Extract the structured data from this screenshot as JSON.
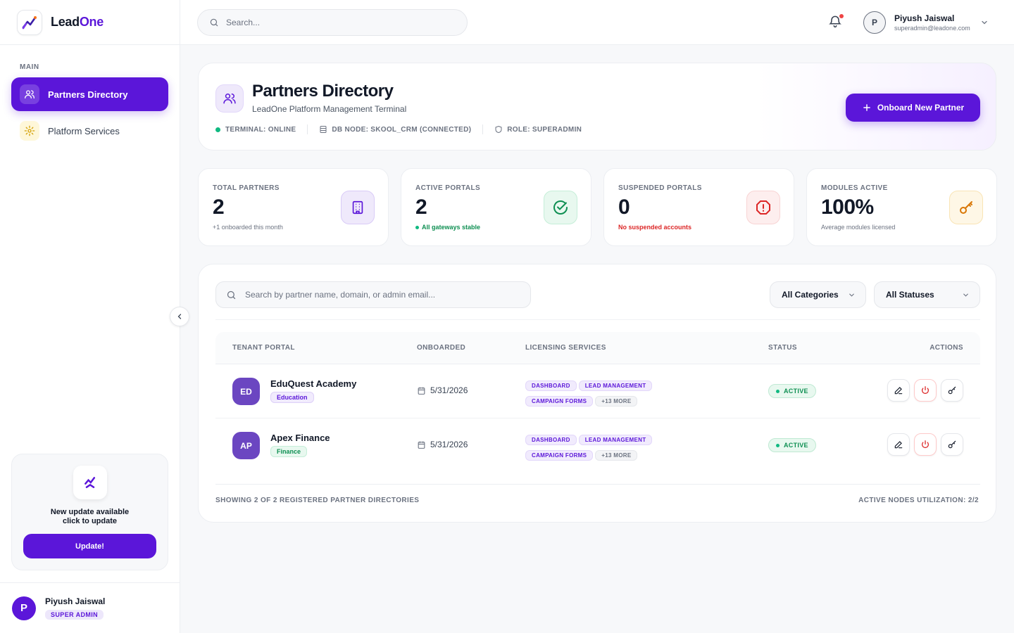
{
  "brand": {
    "name_part1": "Lead",
    "name_part2": "One"
  },
  "sidebar": {
    "section_label": "MAIN",
    "items": [
      {
        "label": "Partners Directory",
        "icon": "users-icon",
        "active": true
      },
      {
        "label": "Platform Services",
        "icon": "gear-icon",
        "active": false
      }
    ],
    "update": {
      "line1": "New update available",
      "line2": "click to update",
      "button": "Update!"
    },
    "user": {
      "initial": "P",
      "name": "Piyush Jaiswal",
      "role": "SUPER ADMIN"
    }
  },
  "topbar": {
    "search_placeholder": "Search...",
    "user": {
      "initial": "P",
      "name": "Piyush Jaiswal",
      "email": "superadmin@leadone.com"
    }
  },
  "header": {
    "title": "Partners Directory",
    "subtitle": "LeadOne Platform Management Terminal",
    "meta": {
      "terminal": "TERMINAL: ONLINE",
      "db": "DB NODE: SKOOL_CRM (CONNECTED)",
      "role": "ROLE: SUPERADMIN"
    },
    "cta": "Onboard New Partner"
  },
  "stats": [
    {
      "label": "TOTAL PARTNERS",
      "value": "2",
      "note": "+1 onboarded this month",
      "color": "#5b16d9"
    },
    {
      "label": "ACTIVE PORTALS",
      "value": "2",
      "note": "All gateways stable",
      "color": "#0e8f52"
    },
    {
      "label": "SUSPENDED PORTALS",
      "value": "0",
      "note": "No suspended accounts",
      "color": "#dc2626"
    },
    {
      "label": "MODULES ACTIVE",
      "value": "100%",
      "note": "Average modules licensed",
      "color": "#d97706"
    }
  ],
  "table": {
    "search_placeholder": "Search by partner name, domain, or admin email...",
    "filters": {
      "category": "All Categories",
      "status": "All Statuses"
    },
    "columns": {
      "tenant": "TENANT PORTAL",
      "onboarded": "ONBOARDED",
      "licensing": "LICENSING SERVICES",
      "status": "STATUS",
      "actions": "ACTIONS"
    },
    "rows": [
      {
        "initials": "ED",
        "name": "EduQuest Academy",
        "category": "Education",
        "date": "5/31/2026",
        "tags": [
          "DASHBOARD",
          "LEAD MANAGEMENT",
          "CAMPAIGN FORMS"
        ],
        "more": "+13 MORE",
        "status": "ACTIVE"
      },
      {
        "initials": "AP",
        "name": "Apex Finance",
        "category": "Finance",
        "date": "5/31/2026",
        "tags": [
          "DASHBOARD",
          "LEAD MANAGEMENT",
          "CAMPAIGN FORMS"
        ],
        "more": "+13 MORE",
        "status": "ACTIVE"
      }
    ],
    "footer_left": "SHOWING 2 OF 2 REGISTERED PARTNER DIRECTORIES",
    "footer_right": "ACTIVE NODES UTILIZATION: 2/2"
  }
}
